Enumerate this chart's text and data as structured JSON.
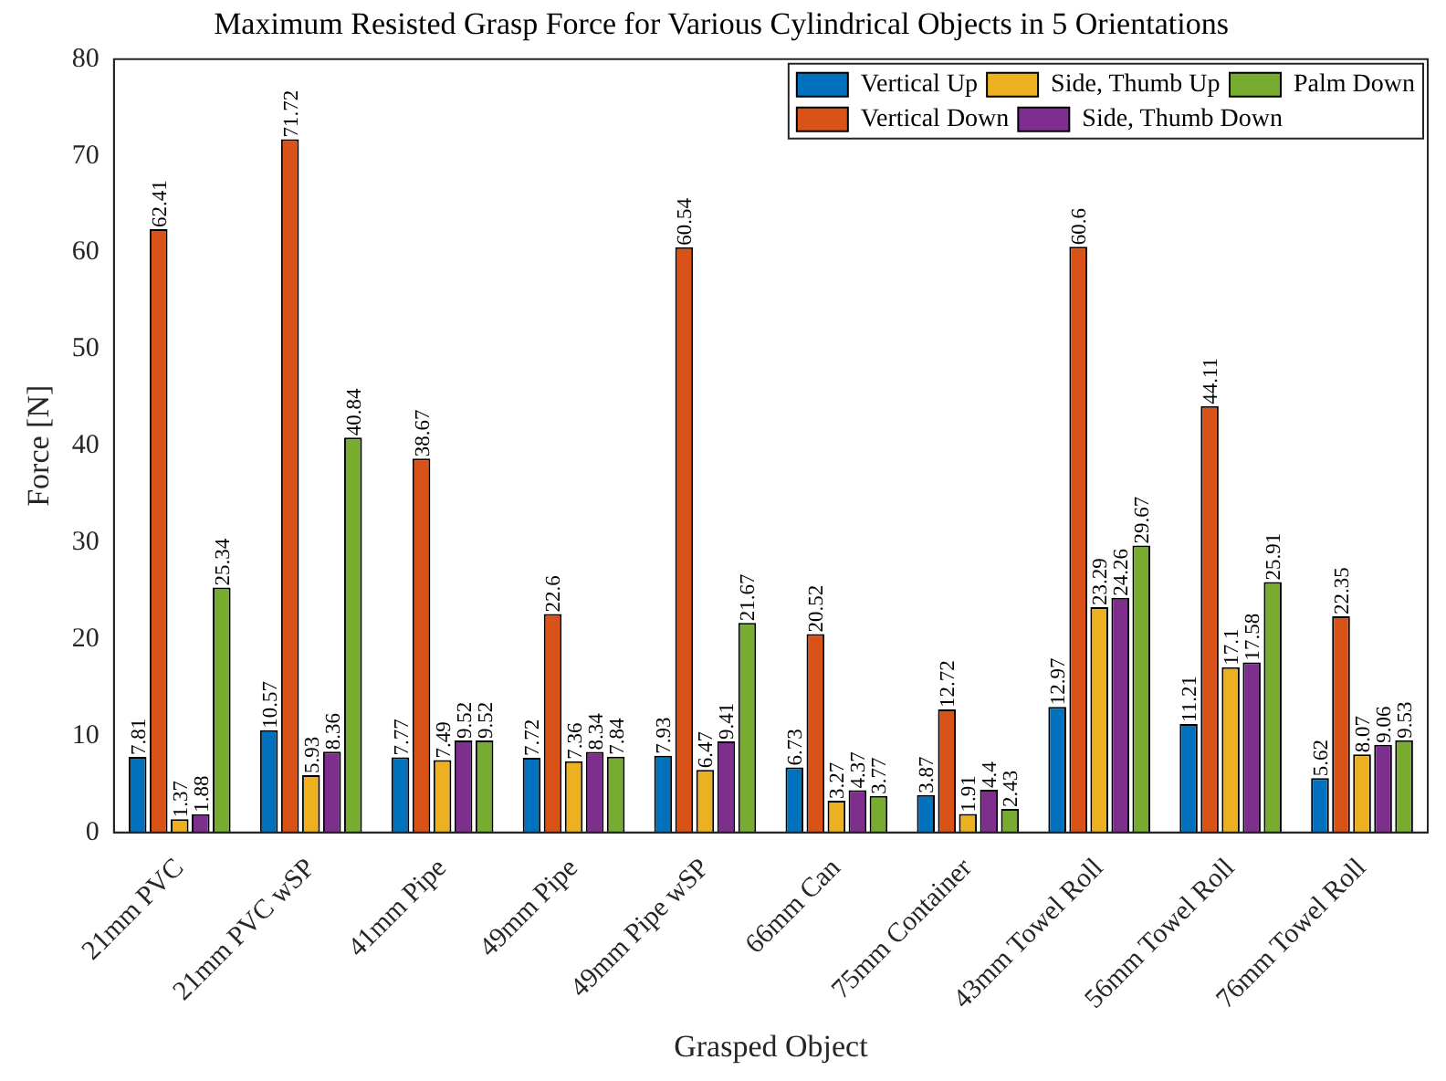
{
  "chart_data": {
    "type": "bar",
    "title": "Maximum Resisted Grasp Force for Various Cylindrical Objects in 5 Orientations",
    "xlabel": "Grasped Object",
    "ylabel": "Force [N]",
    "categories": [
      "21mm PVC",
      "21mm PVC wSP",
      "41mm Pipe",
      "49mm Pipe",
      "49mm Pipe wSP",
      "66mm Can",
      "75mm Container",
      "43mm Towel Roll",
      "56mm Towel Roll",
      "76mm Towel Roll"
    ],
    "series": [
      {
        "name": "Vertical Up",
        "color": "#0072bd",
        "values": [
          7.81,
          10.57,
          7.77,
          7.72,
          7.93,
          6.73,
          3.87,
          12.97,
          11.21,
          5.62
        ]
      },
      {
        "name": "Vertical Down",
        "color": "#d95319",
        "values": [
          62.41,
          71.72,
          38.67,
          22.6,
          60.54,
          20.52,
          12.72,
          60.6,
          44.11,
          22.35
        ]
      },
      {
        "name": "Side, Thumb Up",
        "color": "#edb120",
        "values": [
          1.37,
          5.93,
          7.49,
          7.36,
          6.47,
          3.27,
          1.91,
          23.29,
          17.1,
          8.07
        ]
      },
      {
        "name": "Side, Thumb Down",
        "color": "#7e2f8e",
        "values": [
          1.88,
          8.36,
          9.52,
          8.34,
          9.41,
          4.37,
          4.4,
          24.26,
          17.58,
          9.06
        ]
      },
      {
        "name": "Palm Down",
        "color": "#77ac30",
        "values": [
          25.34,
          40.84,
          9.52,
          7.84,
          21.67,
          3.77,
          2.43,
          29.67,
          25.91,
          9.53
        ]
      }
    ],
    "ylim": [
      0,
      80
    ],
    "yticks": [
      0,
      10,
      20,
      30,
      40,
      50,
      60,
      70,
      80
    ],
    "grid": false,
    "legend": "top right",
    "data_labels": true
  }
}
